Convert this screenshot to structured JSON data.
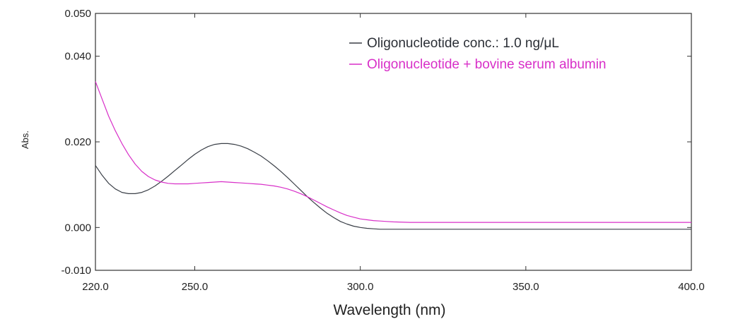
{
  "chart_data": {
    "type": "line",
    "title": "",
    "xlabel": "Wavelength (nm)",
    "ylabel": "Abs.",
    "xlim": [
      220,
      400
    ],
    "ylim": [
      -0.01,
      0.05
    ],
    "x_ticks": [
      220,
      250,
      300,
      350,
      400
    ],
    "x_tick_labels": [
      "220.0",
      "250.0",
      "300.0",
      "350.0",
      "400.0"
    ],
    "y_ticks": [
      -0.01,
      0.0,
      0.02,
      0.04,
      0.05
    ],
    "y_tick_labels": [
      "-0.010",
      "0.000",
      "0.020",
      "0.040",
      "0.050"
    ],
    "grid": false,
    "legend_position": "top-right",
    "series": [
      {
        "name": "Oligonucleotide conc.: 1.0 ng/μL",
        "color": "#3a3f47",
        "x": [
          220,
          222,
          224,
          226,
          228,
          230,
          232,
          234,
          236,
          238,
          240,
          242,
          244,
          246,
          248,
          250,
          252,
          254,
          256,
          258,
          260,
          262,
          264,
          266,
          268,
          270,
          272,
          274,
          276,
          278,
          280,
          282,
          284,
          286,
          288,
          290,
          292,
          294,
          296,
          298,
          300,
          302,
          304,
          306,
          308,
          310,
          315,
          320,
          330,
          340,
          350,
          360,
          370,
          380,
          390,
          400
        ],
        "values": [
          0.0145,
          0.0122,
          0.0103,
          0.009,
          0.0082,
          0.0079,
          0.0079,
          0.0082,
          0.0088,
          0.0097,
          0.0108,
          0.012,
          0.0133,
          0.0146,
          0.0159,
          0.0171,
          0.0181,
          0.0189,
          0.0194,
          0.0196,
          0.0196,
          0.0194,
          0.019,
          0.0184,
          0.0176,
          0.0167,
          0.0156,
          0.0144,
          0.0131,
          0.0117,
          0.0102,
          0.0087,
          0.0072,
          0.0058,
          0.0045,
          0.0033,
          0.0023,
          0.0014,
          0.0008,
          0.0003,
          0.0,
          -0.0002,
          -0.0003,
          -0.0004,
          -0.0004,
          -0.0004,
          -0.0004,
          -0.0004,
          -0.0004,
          -0.0004,
          -0.0004,
          -0.0004,
          -0.0004,
          -0.0004,
          -0.0004,
          -0.0004
        ]
      },
      {
        "name": "Oligonucleotide + bovine serum albumin",
        "color": "#d82fc8",
        "x": [
          220,
          222,
          224,
          226,
          228,
          230,
          232,
          234,
          236,
          238,
          240,
          242,
          244,
          246,
          248,
          250,
          252,
          254,
          256,
          258,
          260,
          262,
          264,
          266,
          268,
          270,
          272,
          274,
          276,
          278,
          280,
          282,
          284,
          286,
          288,
          290,
          292,
          294,
          296,
          298,
          300,
          302,
          304,
          306,
          308,
          310,
          315,
          320,
          330,
          340,
          350,
          360,
          370,
          380,
          390,
          400
        ],
        "values": [
          0.0341,
          0.03,
          0.026,
          0.0226,
          0.0196,
          0.017,
          0.0148,
          0.0131,
          0.0119,
          0.0111,
          0.0106,
          0.0103,
          0.0102,
          0.0102,
          0.0102,
          0.0103,
          0.0104,
          0.0105,
          0.0106,
          0.0107,
          0.0106,
          0.0105,
          0.0104,
          0.0103,
          0.0102,
          0.0101,
          0.0099,
          0.0097,
          0.0094,
          0.009,
          0.0085,
          0.0079,
          0.0072,
          0.0064,
          0.0056,
          0.0048,
          0.0041,
          0.0034,
          0.0028,
          0.0024,
          0.002,
          0.0018,
          0.0016,
          0.0015,
          0.0014,
          0.0013,
          0.0012,
          0.0012,
          0.0012,
          0.0012,
          0.0012,
          0.0012,
          0.0012,
          0.0012,
          0.0012,
          0.0012
        ]
      }
    ]
  }
}
